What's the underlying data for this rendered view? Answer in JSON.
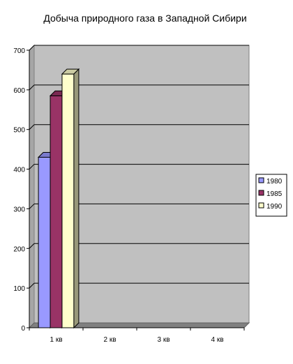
{
  "chart_data": {
    "type": "bar",
    "title": "Добыча природного газа в Западной Сибири",
    "categories": [
      "1 кв",
      "2 кв",
      "3 кв",
      "4 кв"
    ],
    "series": [
      {
        "name": "1980",
        "values": [
          430,
          0,
          0,
          0
        ],
        "color": "#9999ff"
      },
      {
        "name": "1985",
        "values": [
          585,
          0,
          0,
          0
        ],
        "color": "#993366"
      },
      {
        "name": "1990",
        "values": [
          640,
          0,
          0,
          0
        ],
        "color": "#ffffcc"
      }
    ],
    "ylim": [
      0,
      700
    ],
    "yticks": [
      "0",
      "100",
      "200",
      "300",
      "400",
      "500",
      "600",
      "700"
    ],
    "xlabel": "",
    "ylabel": "",
    "grid": true,
    "legend_position": "right",
    "plot_background": "#c0c0c0"
  }
}
